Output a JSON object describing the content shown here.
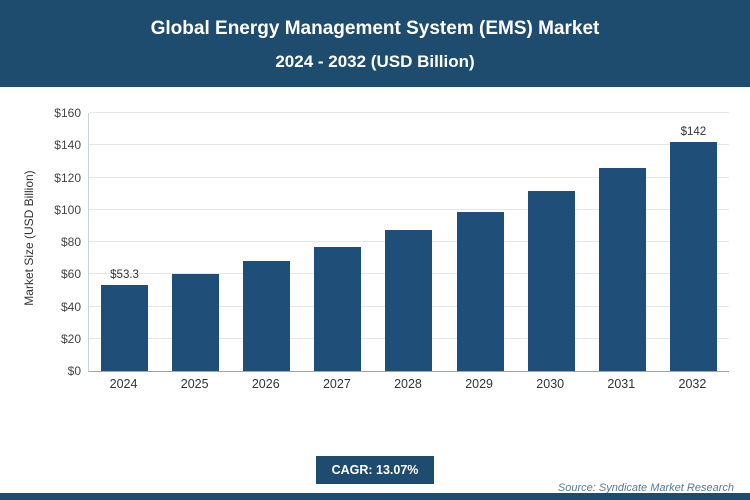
{
  "header": {
    "title_line1": "Global Energy Management System (EMS) Market",
    "title_line2": "2024 - 2032 (USD Billion)"
  },
  "chart_data": {
    "type": "bar",
    "title": "Global Energy Management System (EMS) Market 2024 - 2032 (USD Billion)",
    "categories": [
      "2024",
      "2025",
      "2026",
      "2027",
      "2028",
      "2029",
      "2030",
      "2031",
      "2032"
    ],
    "values": [
      53.3,
      60.3,
      68.2,
      77.1,
      87.2,
      98.6,
      111.4,
      125.9,
      142
    ],
    "bar_labels": [
      "$53.3",
      "",
      "",
      "",
      "",
      "",
      "",
      "",
      "$142"
    ],
    "ylabel": "Market Size (USD Billion)",
    "xlabel": "",
    "ylim": [
      0,
      160
    ],
    "ytick_step": 20,
    "ytick_labels": [
      "$0",
      "$20",
      "$40",
      "$60",
      "$80",
      "$100",
      "$120",
      "$140",
      "$160"
    ],
    "grid": true,
    "legend": false,
    "bar_color": "#1F4E79"
  },
  "footer": {
    "cagr_label": "CAGR: 13.07%",
    "source": "Source: Syndicate Market Research"
  },
  "colors": {
    "accent": "#1E4C6E",
    "bar": "#1F4E79"
  }
}
